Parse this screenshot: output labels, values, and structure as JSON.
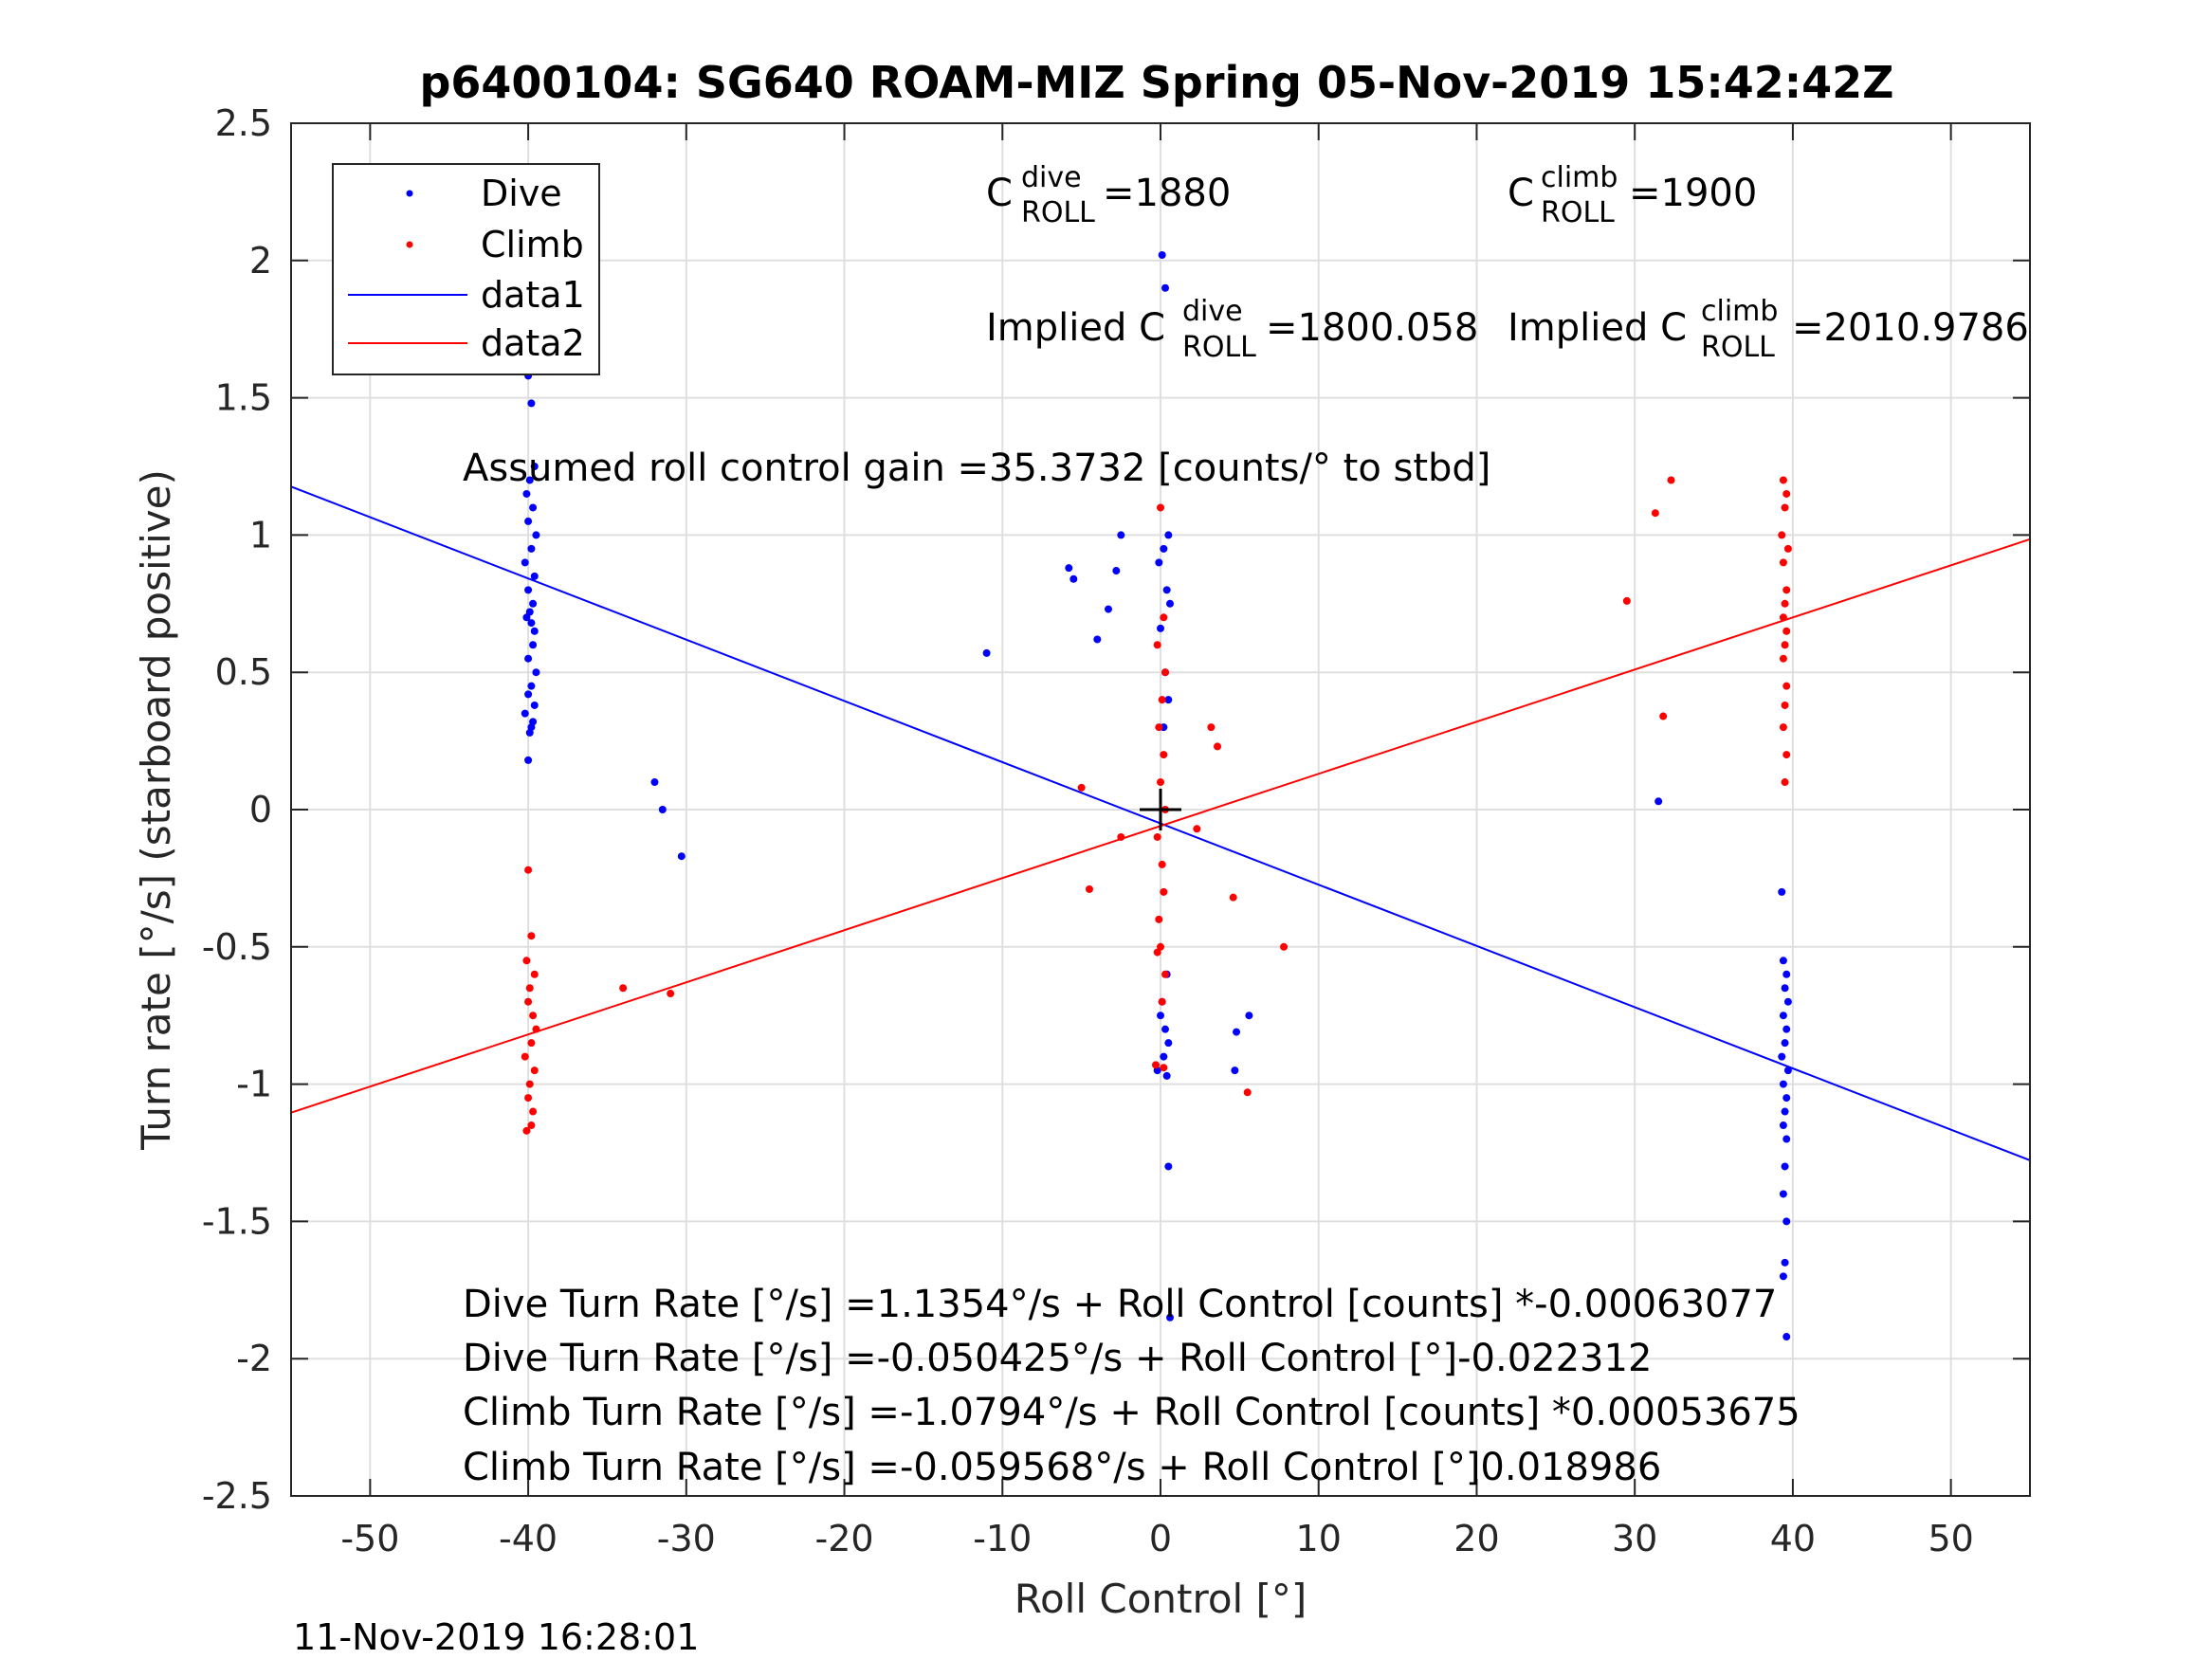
{
  "chart_data": {
    "type": "scatter",
    "title": "p6400104: SG640 ROAM-MIZ Spring 05-Nov-2019 15:42:42Z",
    "xlabel": "Roll Control [°]",
    "ylabel": "Turn rate [°/s] (starboard positive)",
    "xlim": [
      -55,
      55
    ],
    "ylim": [
      -2.5,
      2.5
    ],
    "xticks": [
      -50,
      -40,
      -30,
      -20,
      -10,
      0,
      10,
      20,
      30,
      40,
      50
    ],
    "yticks": [
      2.5,
      2,
      1.5,
      1,
      0.5,
      0,
      -0.5,
      -1,
      -1.5,
      -2,
      -2.5
    ],
    "grid": true,
    "legend": {
      "position": "top-left",
      "entries": [
        "Dive",
        "Climb",
        "data1",
        "data2"
      ]
    },
    "colors": {
      "dive": "#0000ff",
      "climb": "#ff0000",
      "marker": "#000000"
    },
    "series": [
      {
        "name": "Dive",
        "kind": "points",
        "x": [
          -40,
          -40,
          -39.8,
          -39.6,
          -39.9,
          -40.1,
          -39.7,
          -40,
          -39.5,
          -39.8,
          -40.2,
          -39.6,
          -40,
          -39.7,
          -39.9,
          -40.1,
          -39.8,
          -39.6,
          -39.7,
          -40,
          -39.5,
          -39.8,
          -40,
          -39.6,
          -40.2,
          -39.7,
          -39.9,
          -40,
          -39.8,
          -32,
          -31.5,
          -30.3,
          -11,
          -5.8,
          -5.5,
          -4,
          -3.3,
          -2.8,
          -2.5,
          0.1,
          0.3,
          0.5,
          0.2,
          -0.1,
          0.4,
          0.6,
          0,
          0.3,
          0.5,
          0.2,
          0.4,
          0.1,
          0.3,
          0.5,
          -0.2,
          0.2,
          0.4,
          0,
          0.5,
          4.8,
          4.7,
          5.6,
          0.6,
          31.5,
          39.3,
          39.4,
          39.6,
          39.5,
          39.7,
          39.4,
          39.6,
          39.5,
          39.3,
          39.7,
          39.4,
          39.6,
          39.5,
          39.4,
          39.6,
          39.5,
          39.4,
          39.6,
          39.5,
          39.4,
          39.6
        ],
        "y": [
          1.6,
          1.58,
          1.48,
          1.25,
          1.2,
          1.15,
          1.1,
          1.05,
          1.0,
          0.95,
          0.9,
          0.85,
          0.8,
          0.75,
          0.72,
          0.7,
          0.68,
          0.65,
          0.6,
          0.55,
          0.5,
          0.45,
          0.42,
          0.38,
          0.35,
          0.32,
          0.28,
          0.18,
          0.3,
          0.1,
          0.0,
          -0.17,
          0.57,
          0.88,
          0.84,
          0.62,
          0.73,
          0.87,
          1.0,
          2.02,
          1.9,
          1.0,
          0.95,
          0.9,
          0.8,
          0.75,
          0.66,
          0.5,
          0.4,
          0.3,
          -0.6,
          -0.7,
          -0.8,
          -0.85,
          -0.95,
          -0.9,
          -0.97,
          -0.75,
          -1.3,
          -0.81,
          -0.95,
          -0.75,
          -1.85,
          0.03,
          -0.3,
          -0.55,
          -0.6,
          -0.65,
          -0.7,
          -0.75,
          -0.8,
          -0.85,
          -0.9,
          -0.95,
          -1.0,
          -1.05,
          -1.1,
          -1.15,
          -1.2,
          -1.3,
          -1.4,
          -1.5,
          -1.65,
          -1.7,
          -1.92
        ]
      },
      {
        "name": "Climb",
        "kind": "points",
        "x": [
          -40,
          -39.8,
          -40.1,
          -39.6,
          -39.9,
          -40,
          -39.7,
          -39.5,
          -39.8,
          -40.2,
          -39.6,
          -39.9,
          -40,
          -39.7,
          -39.8,
          -40.1,
          -34,
          -31,
          -5,
          -4.5,
          -2.5,
          0,
          0.2,
          -0.2,
          0.3,
          0.1,
          -0.1,
          0.2,
          0,
          0.3,
          -0.2,
          0.1,
          0.2,
          -0.1,
          0,
          0.3,
          0.1,
          -0.2,
          0.2,
          -0.3,
          2.3,
          3.2,
          3.6,
          4.6,
          5.5,
          7.8,
          29.5,
          31.3,
          31.8,
          32.3,
          39.4,
          39.6,
          39.5,
          39.3,
          39.7,
          39.4,
          39.6,
          39.5,
          39.4,
          39.6,
          39.5,
          39.4,
          39.6,
          39.5,
          39.4,
          39.6,
          39.5
        ],
        "y": [
          -0.22,
          -0.46,
          -0.55,
          -0.6,
          -0.65,
          -0.7,
          -0.75,
          -0.8,
          -0.85,
          -0.9,
          -0.95,
          -1.0,
          -1.05,
          -1.1,
          -1.15,
          -1.17,
          -0.65,
          -0.67,
          0.08,
          -0.29,
          -0.1,
          1.1,
          0.7,
          0.6,
          0.5,
          0.4,
          0.3,
          0.2,
          0.1,
          0.0,
          -0.1,
          -0.2,
          -0.3,
          -0.4,
          -0.5,
          -0.6,
          -0.7,
          -0.52,
          -0.94,
          -0.93,
          -0.07,
          0.3,
          0.23,
          -0.32,
          -1.03,
          -0.5,
          0.76,
          1.08,
          0.34,
          1.2,
          1.2,
          1.15,
          1.1,
          1.0,
          0.95,
          0.9,
          0.8,
          0.75,
          0.7,
          0.65,
          0.6,
          0.55,
          0.45,
          0.38,
          0.3,
          0.2,
          0.1
        ]
      },
      {
        "name": "data1",
        "kind": "line",
        "x": [
          -55,
          55
        ],
        "y": [
          1.1766,
          -1.2774
        ]
      },
      {
        "name": "data2",
        "kind": "line",
        "x": [
          -55,
          55
        ],
        "y": [
          -1.1038,
          0.9846
        ]
      }
    ],
    "center_marker": {
      "x": 0,
      "y": 0,
      "symbol": "+"
    },
    "annotations": {
      "c_dive": {
        "pre": "C",
        "sup": "dive",
        "sub": "ROLL",
        "post": " =1880"
      },
      "c_climb": {
        "pre": "C",
        "sup": "climb",
        "sub": "ROLL",
        "post": " =1900"
      },
      "implied_dive": {
        "pre": "Implied C",
        "sup": "dive",
        "sub": "ROLL",
        "post": " =1800.058"
      },
      "implied_climb": {
        "pre": "Implied C",
        "sup": "climb",
        "sub": "ROLL",
        "post": " =2010.9786"
      },
      "gain": "Assumed roll control gain =35.3732 [counts/° to stbd]",
      "fits": [
        "Dive Turn Rate [°/s] =1.1354°/s + Roll Control [counts] *-0.00063077",
        "Dive Turn Rate [°/s] =-0.050425°/s + Roll Control [°]-0.022312",
        "Climb Turn Rate [°/s] =-1.0794°/s + Roll Control [counts] *0.00053675",
        "Climb Turn Rate [°/s] =-0.059568°/s + Roll Control [°]0.018986"
      ]
    }
  },
  "footer_timestamp": "11-Nov-2019 16:28:01"
}
